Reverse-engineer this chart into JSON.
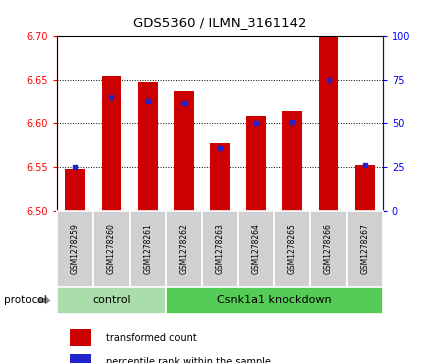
{
  "title": "GDS5360 / ILMN_3161142",
  "samples": [
    "GSM1278259",
    "GSM1278260",
    "GSM1278261",
    "GSM1278262",
    "GSM1278263",
    "GSM1278264",
    "GSM1278265",
    "GSM1278266",
    "GSM1278267"
  ],
  "red_values": [
    6.548,
    6.655,
    6.647,
    6.637,
    6.577,
    6.608,
    6.614,
    6.701,
    6.552
  ],
  "blue_percentiles": [
    25,
    65,
    63,
    62,
    36,
    50,
    51,
    75,
    26
  ],
  "ylim_left": [
    6.5,
    6.7
  ],
  "ylim_right": [
    0,
    100
  ],
  "yticks_left": [
    6.5,
    6.55,
    6.6,
    6.65,
    6.7
  ],
  "yticks_right": [
    0,
    25,
    50,
    75,
    100
  ],
  "base_value": 6.5,
  "control_count": 3,
  "knockdown_count": 6,
  "control_label": "control",
  "knockdown_label": "Csnk1a1 knockdown",
  "protocol_label": "protocol",
  "legend_red": "transformed count",
  "legend_blue": "percentile rank within the sample",
  "red_color": "#cc0000",
  "blue_color": "#2222cc",
  "sample_bg": "#d0d0d0",
  "control_bg": "#aaddaa",
  "knockdown_bg": "#55cc55"
}
